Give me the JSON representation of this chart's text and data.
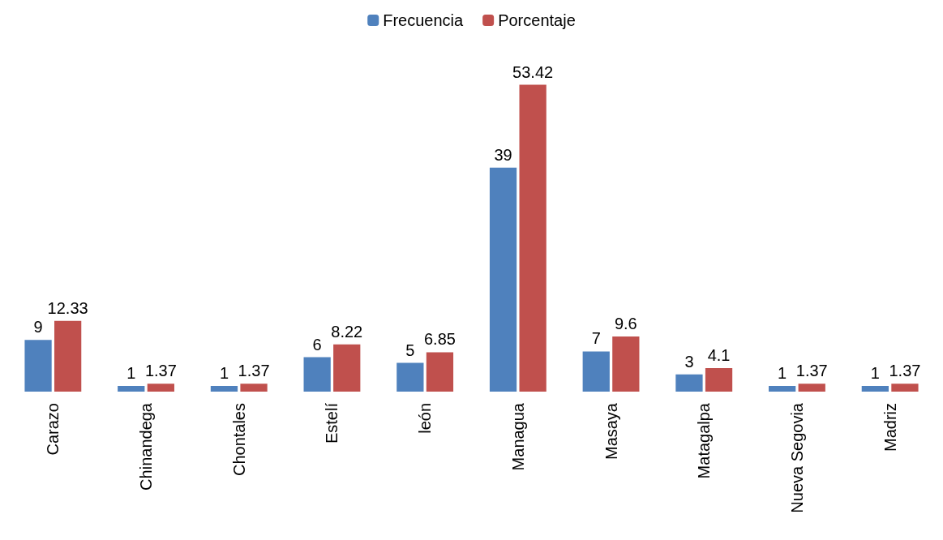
{
  "chart_data": {
    "type": "bar",
    "categories": [
      "Carazo",
      "Chinandega",
      "Chontales",
      "Estelí",
      "león",
      "Managua",
      "Masaya",
      "Matagalpa",
      "Nueva Segovia",
      "Madriz"
    ],
    "series": [
      {
        "name": "Frecuencia",
        "color": "#4f81bd",
        "values": [
          9,
          1,
          1,
          6,
          5,
          39,
          7,
          3,
          1,
          1
        ]
      },
      {
        "name": "Porcentaje",
        "color": "#c0504d",
        "values": [
          12.33,
          1.37,
          1.37,
          8.22,
          6.85,
          53.42,
          9.6,
          4.1,
          1.37,
          1.37
        ]
      }
    ],
    "data_labels": true,
    "legend": "top",
    "grid": false
  }
}
